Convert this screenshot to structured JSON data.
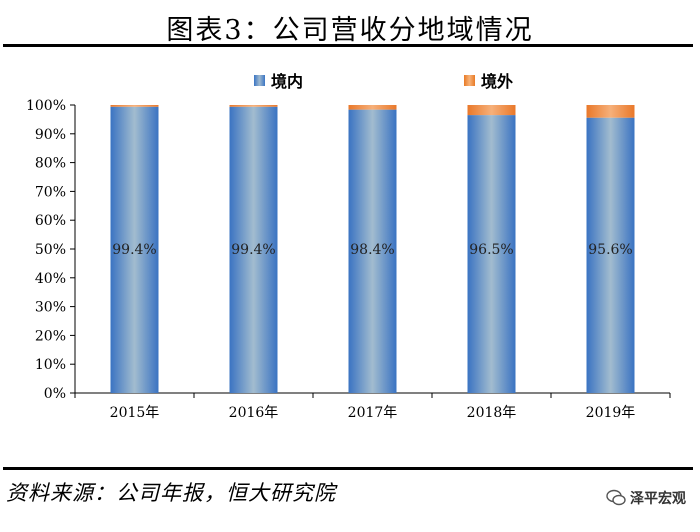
{
  "header": {
    "title": "图表3：公司营收分地域情况"
  },
  "legend": {
    "domestic_label": "境内",
    "overseas_label": "境外"
  },
  "colors": {
    "domestic": "#3a75c4",
    "domestic_light": "#9fb9cf",
    "overseas": "#f08c3c"
  },
  "chart_data": {
    "type": "bar",
    "stacked": true,
    "categories": [
      "2015年",
      "2016年",
      "2017年",
      "2018年",
      "2019年"
    ],
    "series": [
      {
        "name": "境内",
        "values": [
          99.4,
          99.4,
          98.4,
          96.5,
          95.6
        ],
        "labels": [
          "99.4%",
          "99.4%",
          "98.4%",
          "96.5%",
          "95.6%"
        ]
      },
      {
        "name": "境外",
        "values": [
          0.6,
          0.6,
          1.6,
          3.5,
          4.4
        ]
      }
    ],
    "ylim": [
      0,
      100
    ],
    "yticks": [
      "0%",
      "10%",
      "20%",
      "30%",
      "40%",
      "50%",
      "60%",
      "70%",
      "80%",
      "90%",
      "100%"
    ],
    "grid": false,
    "legend_position": "top"
  },
  "footer": {
    "source": "资料来源：公司年报，恒大研究院",
    "watermark": "泽平宏观",
    "watermark_icon": "wechat-icon"
  }
}
